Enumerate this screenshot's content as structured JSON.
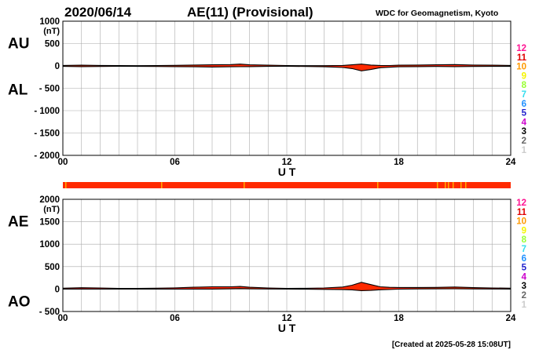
{
  "header": {
    "date": "2020/06/14",
    "title": "AE(11) (Provisional)",
    "source": "WDC for Geomagnetism, Kyoto"
  },
  "footer": {
    "created": "[Created at 2025-05-28 15:08UT]"
  },
  "legend": {
    "labels": [
      "12",
      "11",
      "10",
      "9",
      "8",
      "7",
      "6",
      "5",
      "4",
      "3",
      "2",
      "1"
    ],
    "colors": [
      "#ff1493",
      "#e00000",
      "#ff9900",
      "#f5f500",
      "#99ff33",
      "#33ddee",
      "#1e90ff",
      "#2020cc",
      "#cc00cc",
      "#000000",
      "#666666",
      "#cccccc"
    ]
  },
  "colors": {
    "envelope": "#ff2a00",
    "station_bar": "#ff2a00",
    "station_bar_alt": "#ffaa00",
    "axis": "#000000",
    "grid": "#aaaaaa"
  },
  "chart_data": [
    {
      "type": "area",
      "name": "AU/AL",
      "labels": {
        "upper": "AU",
        "lower": "AL"
      },
      "unit": "(nT)",
      "xlabel": "U T",
      "xlim": [
        0,
        24
      ],
      "xticks": [
        "00",
        "06",
        "12",
        "18",
        "24"
      ],
      "ylim": [
        -2000,
        1000
      ],
      "yticks": [
        1000,
        500,
        0,
        -500,
        -1000,
        -1500,
        -2000
      ],
      "x": [
        0,
        1,
        2,
        3,
        4,
        5,
        6,
        7,
        8,
        9,
        9.5,
        10,
        11,
        12,
        13,
        14,
        15,
        15.5,
        16,
        16.5,
        17,
        17.5,
        18,
        19,
        20,
        21,
        22,
        23,
        24
      ],
      "series": [
        {
          "name": "AU",
          "values": [
            10,
            15,
            10,
            8,
            5,
            8,
            12,
            20,
            25,
            30,
            40,
            25,
            15,
            8,
            6,
            5,
            10,
            25,
            40,
            20,
            10,
            8,
            15,
            20,
            25,
            30,
            20,
            15,
            10
          ]
        },
        {
          "name": "AL",
          "values": [
            -10,
            -15,
            -12,
            -8,
            -10,
            -12,
            -15,
            -20,
            -25,
            -20,
            -18,
            -15,
            -10,
            -8,
            -12,
            -20,
            -35,
            -60,
            -110,
            -80,
            -40,
            -30,
            -20,
            -15,
            -12,
            -15,
            -12,
            -10,
            -10
          ]
        }
      ]
    },
    {
      "type": "area",
      "name": "AE/AO",
      "labels": {
        "upper": "AE",
        "lower": "AO"
      },
      "unit": "(nT)",
      "xlabel": "U T",
      "xlim": [
        0,
        24
      ],
      "xticks": [
        "00",
        "06",
        "12",
        "18",
        "24"
      ],
      "ylim": [
        -500,
        2000
      ],
      "yticks": [
        2000,
        1500,
        1000,
        500,
        0,
        -500
      ],
      "x": [
        0,
        1,
        2,
        3,
        4,
        5,
        6,
        7,
        8,
        9,
        9.5,
        10,
        11,
        12,
        13,
        14,
        15,
        15.5,
        16,
        16.5,
        17,
        17.5,
        18,
        19,
        20,
        21,
        22,
        23,
        24
      ],
      "series": [
        {
          "name": "AE",
          "values": [
            20,
            30,
            22,
            16,
            15,
            20,
            27,
            40,
            50,
            50,
            58,
            40,
            25,
            16,
            18,
            25,
            45,
            85,
            150,
            100,
            50,
            38,
            35,
            35,
            37,
            45,
            32,
            25,
            20
          ]
        },
        {
          "name": "AO",
          "values": [
            0,
            0,
            -1,
            0,
            -2,
            -2,
            -1,
            0,
            0,
            5,
            11,
            5,
            2,
            0,
            -3,
            -7,
            -12,
            -17,
            -35,
            -30,
            -15,
            -11,
            -2,
            3,
            6,
            7,
            4,
            2,
            0
          ]
        }
      ]
    }
  ]
}
